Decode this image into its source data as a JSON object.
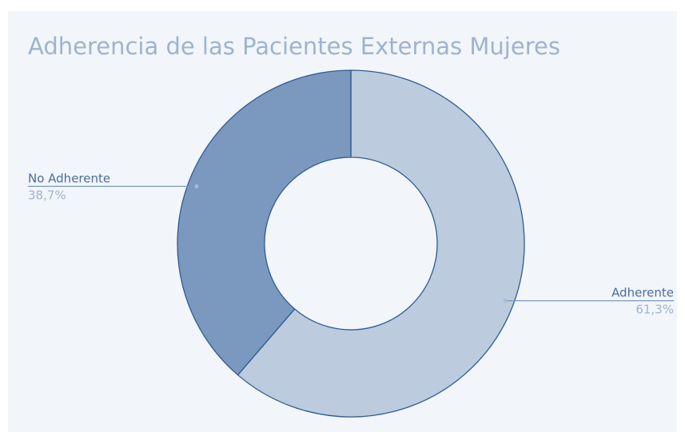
{
  "chart_data": {
    "type": "donut",
    "title": "Adherencia de las Pacientes Externas Mujeres",
    "categories": [
      "Adherente",
      "No Adherente"
    ],
    "values": [
      61.3,
      38.7
    ],
    "value_labels": [
      "61,3%",
      "38,7%"
    ],
    "colors": [
      "#bccbdd",
      "#7b98bf"
    ]
  }
}
